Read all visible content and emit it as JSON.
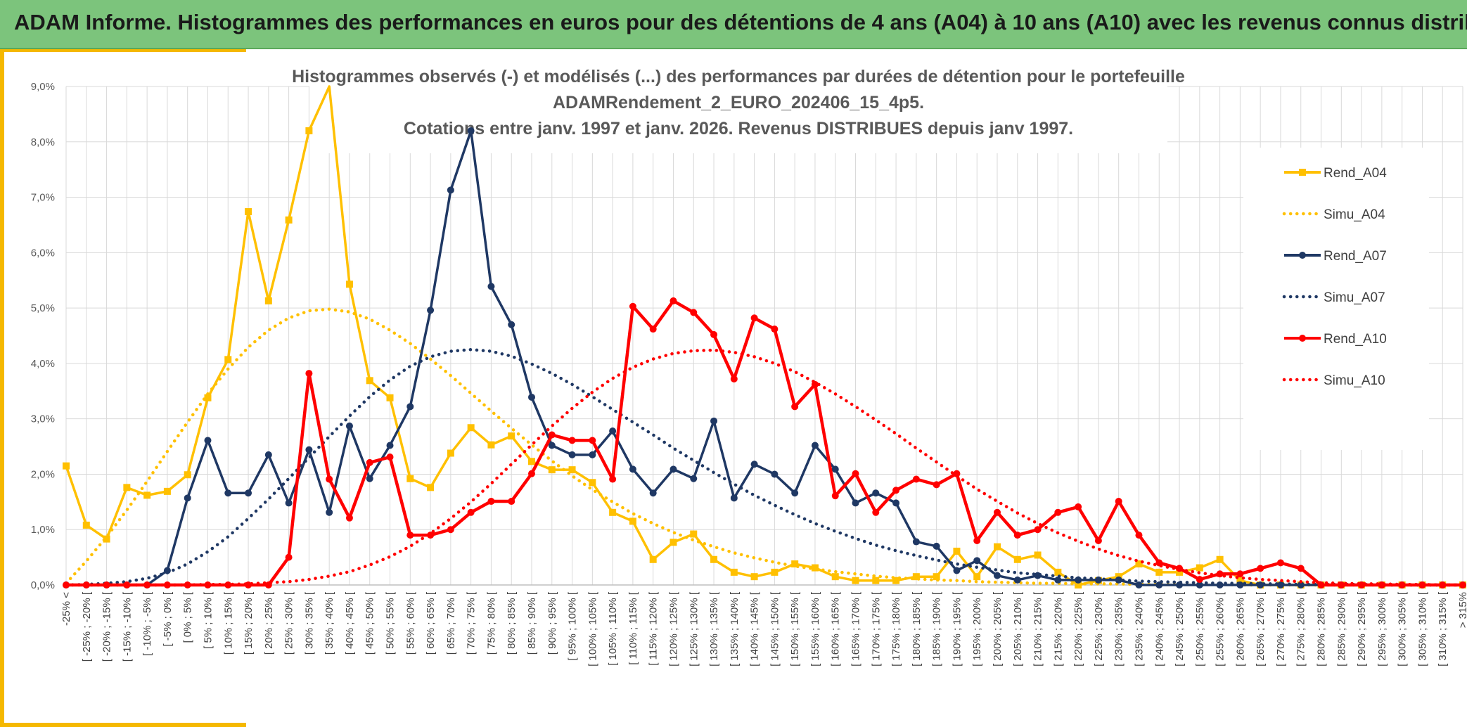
{
  "banner": {
    "title": "ADAM Informe. Histogrammes des performances en euros pour des détentions de 4 ans (A04) à 10 ans (A10) avec les revenus connus distribués"
  },
  "chart_data": {
    "type": "line",
    "title_lines": [
      "Histogrammes observés (-) et modélisés (...) des performances par durées de détention pour le portefeuille",
      "ADAMRendement_2_EURO_202406_15_4p5.",
      "Cotations entre janv. 1997 et janv. 2026. Revenus DISTRIBUES depuis janv 1997."
    ],
    "xlabel": "",
    "ylabel": "",
    "ylim": [
      0,
      9
    ],
    "yticks": [
      "0,0%",
      "1,0%",
      "2,0%",
      "3,0%",
      "4,0%",
      "5,0%",
      "6,0%",
      "7,0%",
      "8,0%",
      "9,0%"
    ],
    "grid": true,
    "legend_position": "right",
    "categories": [
      "-25% <",
      "[ -25% ; -20% [",
      "[ -20% ; -15% [",
      "[ -15% ; -10% [",
      "[ -10% ; -5% [",
      "[ -5% ; 0% [",
      "[ 0% ; 5% [",
      "[ 5% ; 10% [",
      "[ 10% ; 15% [",
      "[ 15% ; 20% [",
      "[ 20% ; 25% [",
      "[ 25% ; 30% [",
      "[ 30% ; 35% [",
      "[ 35% ; 40% [",
      "[ 40% ; 45% [",
      "[ 45% ; 50% [",
      "[ 50% ; 55% [",
      "[ 55% ; 60% [",
      "[ 60% ; 65% [",
      "[ 65% ; 70% [",
      "[ 70% ; 75% [",
      "[ 75% ; 80% [",
      "[ 80% ; 85% [",
      "[ 85% ; 90% [",
      "[ 90% ; 95% [",
      "[ 95% ; 100% [",
      "[ 100% ; 105% [",
      "[ 105% ; 110% [",
      "[ 110% ; 115% [",
      "[ 115% ; 120% [",
      "[ 120% ; 125% [",
      "[ 125% ; 130% [",
      "[ 130% ; 135% [",
      "[ 135% ; 140% [",
      "[ 140% ; 145% [",
      "[ 145% ; 150% [",
      "[ 150% ; 155% [",
      "[ 155% ; 160% [",
      "[ 160% ; 165% [",
      "[ 165% ; 170% [",
      "[ 170% ; 175% [",
      "[ 175% ; 180% [",
      "[ 180% ; 185% [",
      "[ 185% ; 190% [",
      "[ 190% ; 195% [",
      "[ 195% ; 200% [",
      "[ 200% ; 205% [",
      "[ 205% ; 210% [",
      "[ 210% ; 215% [",
      "[ 215% ; 220% [",
      "[ 220% ; 225% [",
      "[ 225% ; 230% [",
      "[ 230% ; 235% [",
      "[ 235% ; 240% [",
      "[ 240% ; 245% [",
      "[ 245% ; 250% [",
      "[ 250% ; 255% [",
      "[ 255% ; 260% [",
      "[ 260% ; 265% [",
      "[ 265% ; 270% [",
      "[ 270% ; 275% [",
      "[ 275% ; 280% [",
      "[ 280% ; 285% [",
      "[ 285% ; 290% [",
      "[ 290% ; 295% [",
      "[ 295% ; 300% [",
      "[ 300% ; 305% [",
      "[ 305% ; 310% [",
      "[ 310% ; 315% [",
      "> 315%"
    ],
    "series": [
      {
        "name": "Rend_A04",
        "color": "#ffc000",
        "style": "solid",
        "marker": "square",
        "values": [
          2.15,
          1.08,
          0.83,
          1.76,
          1.62,
          1.69,
          1.99,
          3.38,
          4.07,
          6.74,
          5.13,
          6.59,
          8.2,
          9.2,
          5.43,
          3.69,
          3.38,
          1.92,
          1.76,
          2.38,
          2.84,
          2.53,
          2.69,
          2.23,
          2.08,
          2.08,
          1.85,
          1.31,
          1.15,
          0.46,
          0.77,
          0.92,
          0.46,
          0.23,
          0.15,
          0.23,
          0.38,
          0.31,
          0.15,
          0.08,
          0.08,
          0.08,
          0.15,
          0.15,
          0.61,
          0.15,
          0.69,
          0.46,
          0.54,
          0.23,
          0.0,
          0.08,
          0.15,
          0.38,
          0.23,
          0.23,
          0.31,
          0.46,
          0.08,
          0.0,
          0.0,
          0.0,
          0.0,
          0.0,
          0.0,
          0.0,
          0.0,
          0.0,
          0.0,
          0.0
        ]
      },
      {
        "name": "Simu_A04",
        "color": "#ffc000",
        "style": "dotted",
        "values": [
          0.03,
          0.43,
          0.87,
          1.35,
          1.87,
          2.41,
          2.94,
          3.45,
          3.9,
          4.29,
          4.6,
          4.82,
          4.95,
          4.98,
          4.93,
          4.8,
          4.6,
          4.36,
          4.08,
          3.78,
          3.46,
          3.14,
          2.83,
          2.53,
          2.24,
          1.97,
          1.72,
          1.5,
          1.29,
          1.11,
          0.95,
          0.81,
          0.69,
          0.58,
          0.49,
          0.41,
          0.34,
          0.29,
          0.24,
          0.2,
          0.16,
          0.13,
          0.11,
          0.09,
          0.08,
          0.06,
          0.05,
          0.04,
          0.03,
          0.03,
          0.02,
          0.02,
          0.02,
          0.01,
          0.01,
          0.01,
          0.01,
          0.01,
          0.0,
          0.0,
          0.0,
          0.0,
          0.0,
          0.0,
          0.0,
          0.0,
          0.0,
          0.0,
          0.0,
          0.0
        ]
      },
      {
        "name": "Rend_A07",
        "color": "#1f3864",
        "style": "solid",
        "marker": "circle",
        "values": [
          0.0,
          0.0,
          0.0,
          0.0,
          0.0,
          0.26,
          1.57,
          2.61,
          1.66,
          1.66,
          2.35,
          1.48,
          2.44,
          1.31,
          2.87,
          1.92,
          2.52,
          3.22,
          4.96,
          7.13,
          8.2,
          5.39,
          4.7,
          3.39,
          2.52,
          2.35,
          2.35,
          2.78,
          2.09,
          1.66,
          2.09,
          1.92,
          2.96,
          1.57,
          2.18,
          2.0,
          1.66,
          2.52,
          2.09,
          1.48,
          1.66,
          1.48,
          0.78,
          0.7,
          0.26,
          0.44,
          0.17,
          0.09,
          0.17,
          0.09,
          0.09,
          0.09,
          0.09,
          0.0,
          0.0,
          0.0,
          0.0,
          0.0,
          0.0,
          0.0,
          0.0,
          0.0,
          0.0,
          0.0,
          0.0,
          0.0,
          0.0,
          0.0,
          0.0,
          0.0
        ]
      },
      {
        "name": "Simu_A07",
        "color": "#1f3864",
        "style": "dotted",
        "values": [
          0.0,
          0.01,
          0.03,
          0.06,
          0.12,
          0.22,
          0.38,
          0.6,
          0.87,
          1.2,
          1.55,
          1.92,
          2.3,
          2.68,
          3.05,
          3.4,
          3.7,
          3.95,
          4.12,
          4.22,
          4.25,
          4.22,
          4.13,
          3.99,
          3.82,
          3.62,
          3.4,
          3.17,
          2.94,
          2.71,
          2.47,
          2.25,
          2.03,
          1.82,
          1.62,
          1.44,
          1.27,
          1.11,
          0.97,
          0.84,
          0.72,
          0.62,
          0.53,
          0.45,
          0.38,
          0.32,
          0.27,
          0.22,
          0.19,
          0.16,
          0.13,
          0.11,
          0.09,
          0.07,
          0.06,
          0.05,
          0.04,
          0.03,
          0.03,
          0.02,
          0.02,
          0.01,
          0.01,
          0.01,
          0.01,
          0.0,
          0.0,
          0.0,
          0.0,
          0.0
        ]
      },
      {
        "name": "Rend_A10",
        "color": "#ff0000",
        "style": "solid",
        "marker": "circle",
        "values": [
          0.0,
          0.0,
          0.0,
          0.0,
          0.0,
          0.0,
          0.0,
          0.0,
          0.0,
          0.0,
          0.0,
          0.5,
          3.82,
          1.91,
          1.21,
          2.21,
          2.31,
          0.9,
          0.9,
          1.0,
          1.31,
          1.51,
          1.51,
          2.01,
          2.71,
          2.61,
          2.61,
          1.91,
          5.03,
          4.62,
          5.13,
          4.92,
          4.52,
          3.72,
          4.82,
          4.62,
          3.22,
          3.62,
          1.61,
          2.01,
          1.31,
          1.71,
          1.91,
          1.81,
          2.01,
          0.8,
          1.31,
          0.9,
          1.0,
          1.31,
          1.41,
          0.8,
          1.51,
          0.9,
          0.4,
          0.3,
          0.1,
          0.2,
          0.2,
          0.3,
          0.4,
          0.3,
          0.0,
          0.0,
          0.0,
          0.0,
          0.0,
          0.0,
          0.0,
          0.0
        ]
      },
      {
        "name": "Simu_A10",
        "color": "#ff0000",
        "style": "dotted",
        "values": [
          0.0,
          0.0,
          0.0,
          0.0,
          0.0,
          0.0,
          0.0,
          0.01,
          0.01,
          0.02,
          0.04,
          0.06,
          0.1,
          0.16,
          0.24,
          0.36,
          0.51,
          0.7,
          0.93,
          1.2,
          1.5,
          1.83,
          2.18,
          2.53,
          2.87,
          3.19,
          3.48,
          3.73,
          3.93,
          4.08,
          4.18,
          4.23,
          4.24,
          4.2,
          4.12,
          4.0,
          3.85,
          3.66,
          3.45,
          3.22,
          2.98,
          2.73,
          2.47,
          2.22,
          1.97,
          1.73,
          1.51,
          1.3,
          1.11,
          0.94,
          0.79,
          0.65,
          0.53,
          0.43,
          0.35,
          0.28,
          0.22,
          0.17,
          0.13,
          0.1,
          0.08,
          0.06,
          0.04,
          0.03,
          0.02,
          0.02,
          0.01,
          0.01,
          0.0,
          0.0
        ]
      }
    ]
  }
}
